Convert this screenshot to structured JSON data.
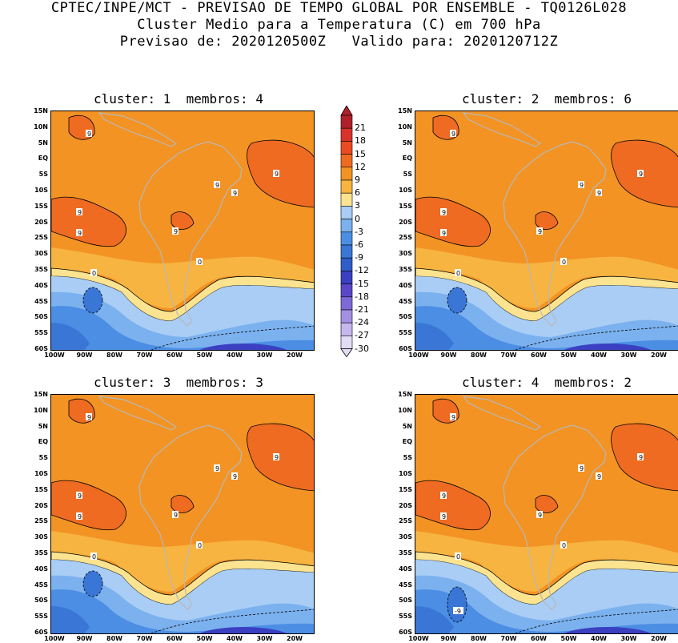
{
  "titles": {
    "line1": "CPTEC/INPE/MCT - PREVISAO DE TEMPO GLOBAL POR ENSEMBLE - TQ0126L028",
    "line2": "Cluster Medio para a Temperatura (C) em 700 hPa",
    "line3": "Previsao de: 2020120500Z   Valido para: 2020120712Z"
  },
  "panels": [
    {
      "title": "cluster: 1  membros: 4"
    },
    {
      "title": "cluster: 2  membros: 6"
    },
    {
      "title": "cluster: 3  membros: 3"
    },
    {
      "title": "cluster: 4  membros: 2"
    }
  ],
  "lat_labels": [
    "15N",
    "10N",
    "5N",
    "EQ",
    "5S",
    "10S",
    "15S",
    "20S",
    "25S",
    "30S",
    "35S",
    "40S",
    "45S",
    "50S",
    "55S",
    "60S"
  ],
  "lon_labels": [
    "100W",
    "90W",
    "80W",
    "70W",
    "60W",
    "50W",
    "40W",
    "30W",
    "20W"
  ],
  "colorbar": {
    "labels": [
      "21",
      "18",
      "15",
      "12",
      "9",
      "6",
      "3",
      "0",
      "-3",
      "-6",
      "-9",
      "-12",
      "-15",
      "-18",
      "-21",
      "-24",
      "-27",
      "-30"
    ],
    "colors": [
      "#b0202a",
      "#d8322a",
      "#ec4a22",
      "#ef6b21",
      "#f29324",
      "#f7b440",
      "#fbe38f",
      "#a9cdf5",
      "#7bb1ee",
      "#4b8ee4",
      "#3a76d6",
      "#2f5ec9",
      "#3b3fc1",
      "#5a46c8",
      "#7e6ad6",
      "#a290e2",
      "#c6b7ee",
      "#e2dcf6"
    ]
  },
  "contour_labels": {
    "warm": "9",
    "zero": "0",
    "cold": "-9"
  }
}
